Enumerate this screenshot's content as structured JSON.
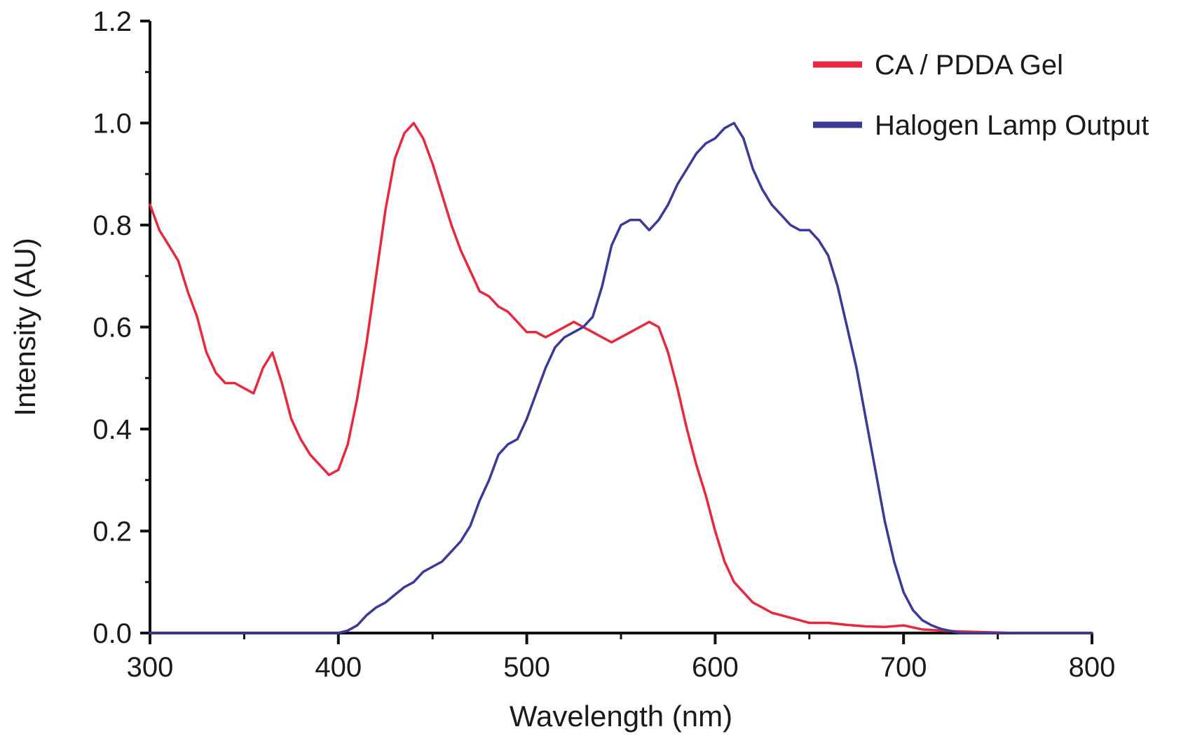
{
  "chart_data": {
    "type": "line",
    "title": "",
    "xlabel": "Wavelength (nm)",
    "ylabel": "Intensity (AU)",
    "xlim": [
      300,
      800
    ],
    "ylim": [
      0.0,
      1.2
    ],
    "x_ticks": [
      "300",
      "400",
      "500",
      "600",
      "700",
      "800"
    ],
    "y_ticks": [
      "0.0",
      "0.2",
      "0.4",
      "0.6",
      "0.8",
      "1.0",
      "1.2"
    ],
    "grid": false,
    "legend_position": "top-right",
    "series": [
      {
        "name": "CA / PDDA Gel",
        "color": "#e8283c",
        "x": [
          300,
          305,
          310,
          315,
          320,
          325,
          330,
          335,
          340,
          345,
          350,
          355,
          360,
          365,
          370,
          375,
          380,
          385,
          390,
          395,
          400,
          405,
          410,
          415,
          420,
          425,
          430,
          435,
          440,
          445,
          450,
          455,
          460,
          465,
          470,
          475,
          480,
          485,
          490,
          495,
          500,
          505,
          510,
          515,
          520,
          525,
          530,
          535,
          540,
          545,
          550,
          555,
          560,
          565,
          570,
          575,
          580,
          585,
          590,
          595,
          600,
          605,
          610,
          615,
          620,
          625,
          630,
          640,
          650,
          660,
          670,
          680,
          690,
          700,
          710,
          720,
          730,
          740,
          750,
          760,
          780,
          800
        ],
        "y": [
          0.84,
          0.79,
          0.76,
          0.73,
          0.67,
          0.62,
          0.55,
          0.51,
          0.49,
          0.49,
          0.48,
          0.47,
          0.52,
          0.55,
          0.49,
          0.42,
          0.38,
          0.35,
          0.33,
          0.31,
          0.32,
          0.37,
          0.46,
          0.57,
          0.7,
          0.83,
          0.93,
          0.98,
          1.0,
          0.97,
          0.92,
          0.86,
          0.8,
          0.75,
          0.71,
          0.67,
          0.66,
          0.64,
          0.63,
          0.61,
          0.59,
          0.59,
          0.58,
          0.59,
          0.6,
          0.61,
          0.6,
          0.59,
          0.58,
          0.57,
          0.58,
          0.59,
          0.6,
          0.61,
          0.6,
          0.55,
          0.48,
          0.4,
          0.33,
          0.27,
          0.2,
          0.14,
          0.1,
          0.08,
          0.06,
          0.05,
          0.04,
          0.03,
          0.02,
          0.02,
          0.016,
          0.013,
          0.012,
          0.015,
          0.007,
          0.005,
          0.003,
          0.002,
          0.001,
          0.0,
          0.0,
          0.0
        ]
      },
      {
        "name": "Halogen Lamp Output",
        "color": "#3b3a98",
        "x": [
          300,
          350,
          380,
          400,
          405,
          410,
          415,
          420,
          425,
          430,
          435,
          440,
          445,
          450,
          455,
          460,
          465,
          470,
          475,
          480,
          485,
          490,
          495,
          500,
          505,
          510,
          515,
          520,
          525,
          530,
          535,
          540,
          545,
          550,
          555,
          560,
          565,
          570,
          575,
          580,
          585,
          590,
          595,
          600,
          605,
          610,
          615,
          620,
          625,
          630,
          635,
          640,
          645,
          650,
          655,
          660,
          665,
          670,
          675,
          680,
          685,
          690,
          695,
          700,
          705,
          710,
          715,
          720,
          725,
          730,
          740,
          750,
          800
        ],
        "y": [
          0.0,
          0.0,
          0.0,
          0.0,
          0.005,
          0.015,
          0.035,
          0.05,
          0.06,
          0.075,
          0.09,
          0.1,
          0.12,
          0.13,
          0.14,
          0.16,
          0.18,
          0.21,
          0.26,
          0.3,
          0.35,
          0.37,
          0.38,
          0.42,
          0.47,
          0.52,
          0.56,
          0.58,
          0.59,
          0.6,
          0.62,
          0.68,
          0.76,
          0.8,
          0.81,
          0.81,
          0.79,
          0.81,
          0.84,
          0.88,
          0.91,
          0.94,
          0.96,
          0.97,
          0.99,
          1.0,
          0.97,
          0.91,
          0.87,
          0.84,
          0.82,
          0.8,
          0.79,
          0.79,
          0.77,
          0.74,
          0.68,
          0.6,
          0.52,
          0.42,
          0.32,
          0.22,
          0.14,
          0.08,
          0.045,
          0.025,
          0.015,
          0.008,
          0.004,
          0.0,
          0.0,
          0.0,
          0.0
        ]
      }
    ]
  }
}
